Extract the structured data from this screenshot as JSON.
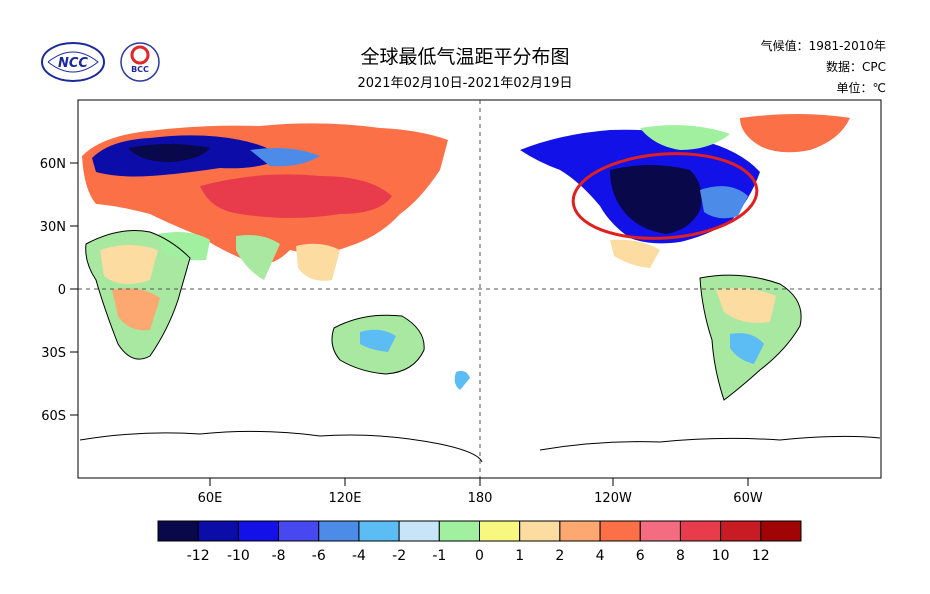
{
  "header": {
    "title": "全球最低气温距平分布图",
    "period": "2021年02月10日-2021年02月19日",
    "climatology": "气候值：1981-2010年",
    "source": "数据：CPC",
    "unit": "单位：℃"
  },
  "logos": {
    "ncc_text": "NCC",
    "bcc_text": "BCC"
  },
  "map": {
    "lat_labels": [
      "60N",
      "30N",
      "0",
      "30S",
      "60S"
    ],
    "lon_labels": [
      "60E",
      "120E",
      "180",
      "120W",
      "60W"
    ],
    "highlight": "red-ellipse-around-north-america-cold-anomaly"
  },
  "colorbar": {
    "colors": [
      "#08084a",
      "#0c0ca8",
      "#1212e8",
      "#4848f0",
      "#4c8ce8",
      "#5cbcf4",
      "#c8e4f8",
      "#a0f0a0",
      "#f8f880",
      "#fcdca0",
      "#fca870",
      "#fc7048",
      "#f46c80",
      "#e83c4c",
      "#c81c24",
      "#a00404"
    ],
    "labels": [
      "-12",
      "-10",
      "-8",
      "-6",
      "-4",
      "-2",
      "-1",
      "0",
      "1",
      "2",
      "4",
      "6",
      "8",
      "10",
      "12"
    ]
  },
  "colors": {
    "extreme_cold": "#08084a",
    "strong_cold": "#1212e8",
    "warm": "#fca870",
    "hot": "#e83c4c",
    "highlight_ring": "#e02020"
  }
}
